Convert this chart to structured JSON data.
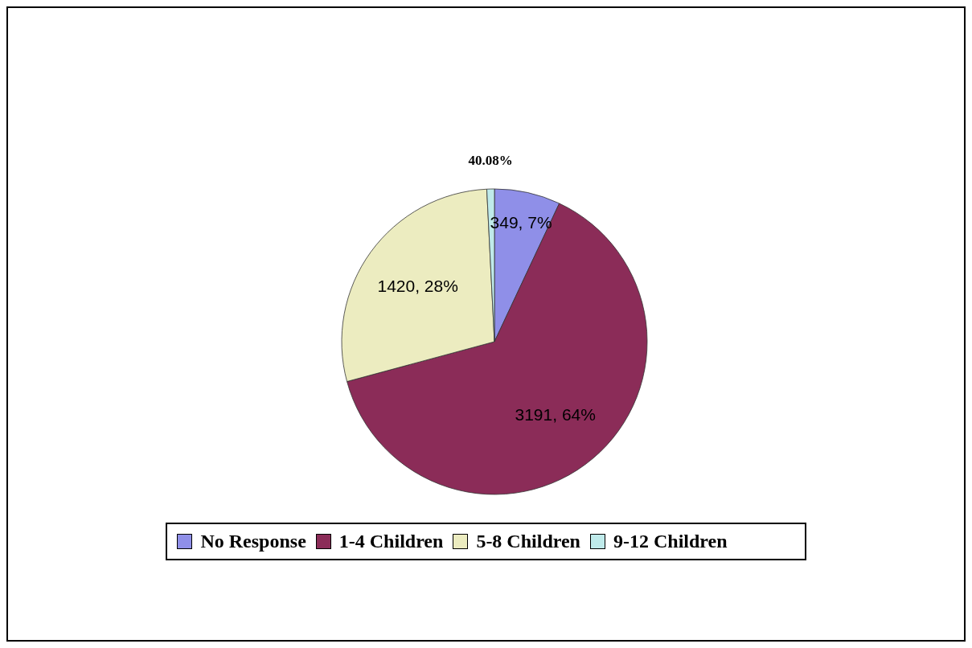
{
  "chart_data": {
    "type": "pie",
    "categories": [
      "No Response",
      "1-4 Children",
      "5-8 Children",
      "9-12 Children"
    ],
    "values": [
      349,
      3191,
      1420,
      40
    ],
    "colors": [
      "#8f8fe8",
      "#8b2c58",
      "#ececc0",
      "#bfeaea"
    ],
    "value_labels": [
      "349, 7%",
      "3191, 64%",
      "1420, 28%",
      null
    ],
    "annotations": [
      "40.08%"
    ],
    "legend": "bottom"
  }
}
